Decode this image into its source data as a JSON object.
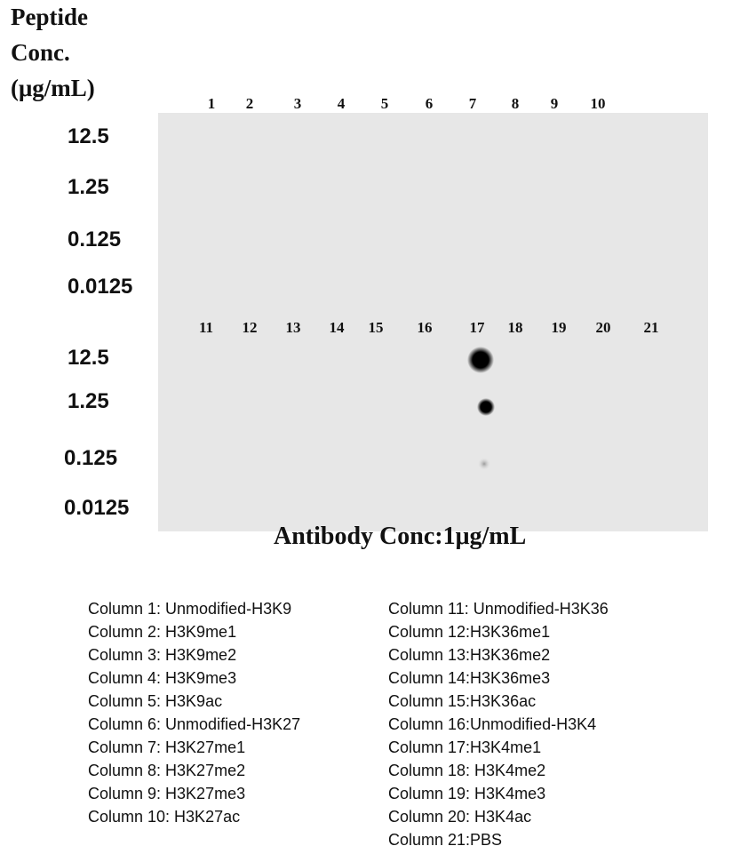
{
  "header": {
    "lines": [
      "Peptide",
      "Conc.",
      "(μg/mL)"
    ]
  },
  "blot": {
    "top_columns": [
      "1",
      "2",
      "3",
      "4",
      "5",
      "6",
      "7",
      "8",
      "9",
      "10"
    ],
    "bottom_columns": [
      "11",
      "12",
      "13",
      "14",
      "15",
      "16",
      "17",
      "18",
      "19",
      "20",
      "21"
    ],
    "top_concentrations": [
      "12.5",
      "1.25",
      "0.125",
      "0.0125"
    ],
    "bottom_concentrations": [
      "12.5",
      "1.25",
      "0.125",
      "0.0125"
    ],
    "antibody": "Antibody Conc:1μg/mL"
  },
  "legend": {
    "left": [
      "Column 1: Unmodified-H3K9",
      "Column 2: H3K9me1",
      "Column 3: H3K9me2",
      "Column 4: H3K9me3",
      "Column 5: H3K9ac",
      "Column 6: Unmodified-H3K27",
      "Column 7: H3K27me1",
      "Column 8: H3K27me2",
      "Column 9: H3K27me3",
      "Column 10: H3K27ac"
    ],
    "right": [
      "Column 11: Unmodified-H3K36",
      "Column 12:H3K36me1",
      "Column 13:H3K36me2",
      "Column 14:H3K36me3",
      "Column 15:H3K36ac",
      "Column 16:Unmodified-H3K4",
      "Column 17:H3K4me1",
      "Column 18: H3K4me2",
      "Column 19: H3K4me3",
      "Column 20: H3K4ac",
      "Column 21:PBS"
    ]
  }
}
